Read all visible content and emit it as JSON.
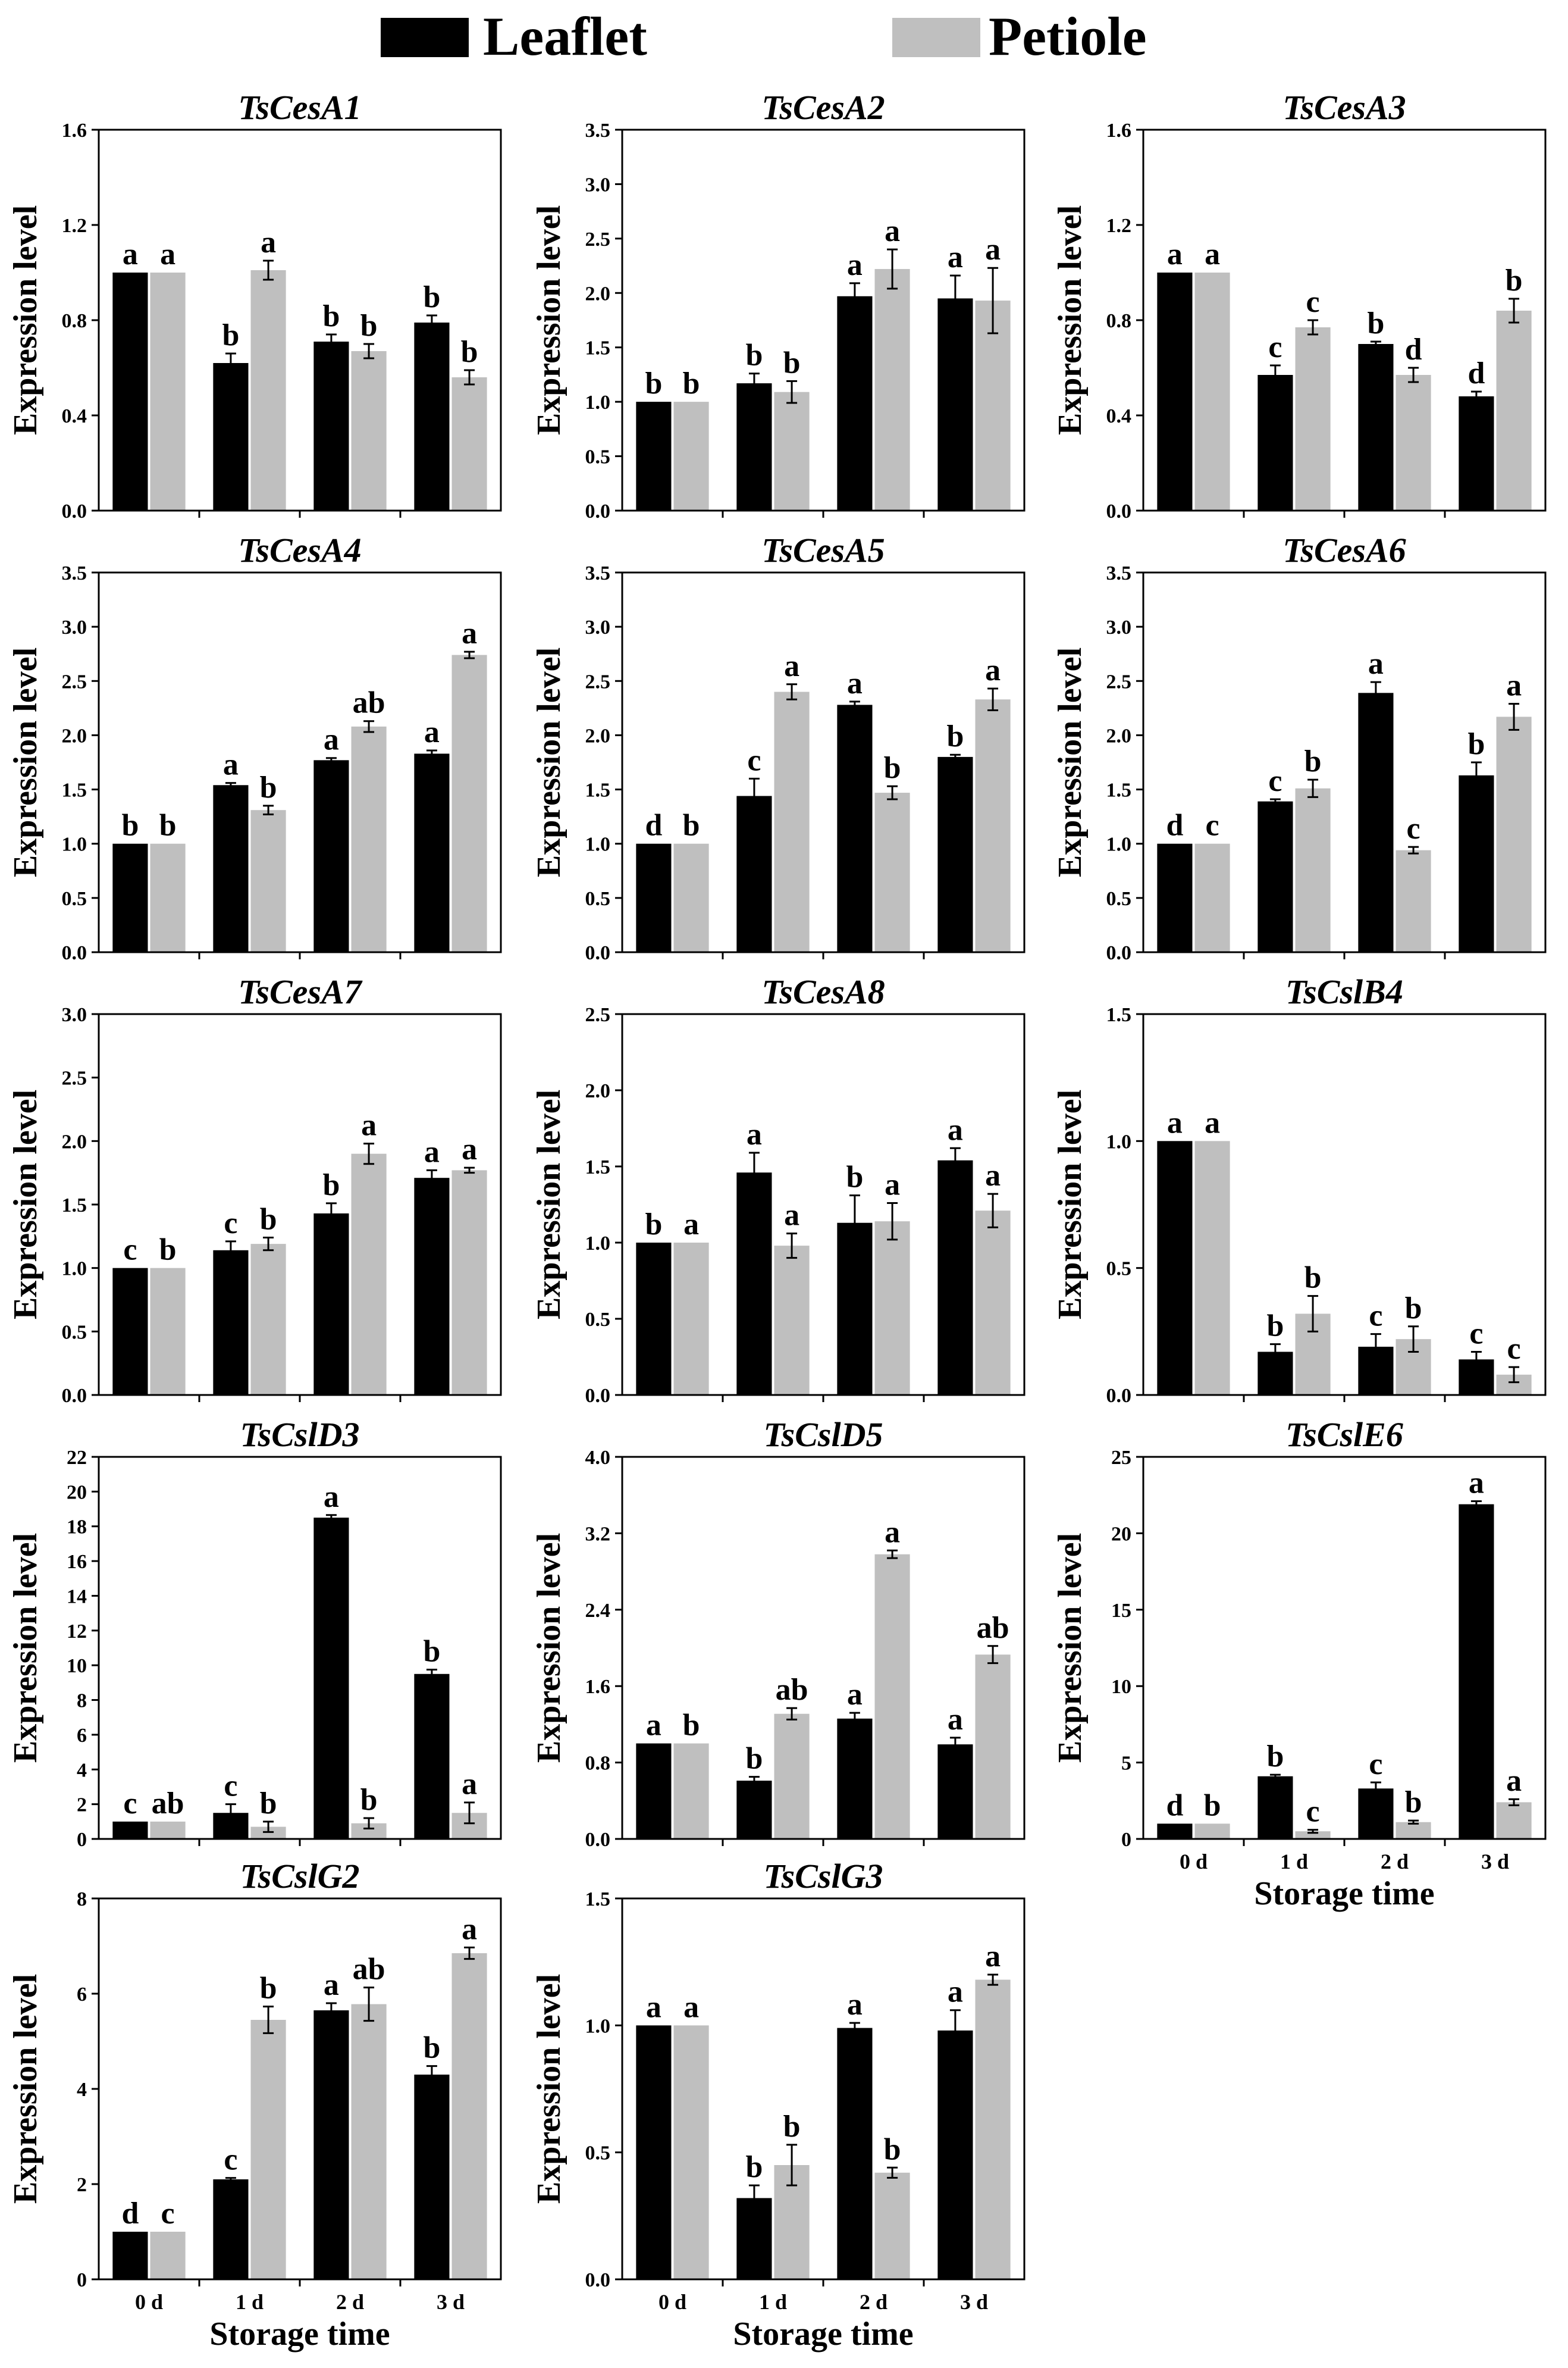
{
  "legend": {
    "items": [
      {
        "name": "Leaflet",
        "color": "#000000"
      },
      {
        "name": "Petiole",
        "color": "#bfbfbf"
      }
    ],
    "placement": "top-center"
  },
  "chart_data": [
    {
      "type": "bar",
      "title": "TsCesA1",
      "ylabel": "Expression level",
      "xlabel": "",
      "categories": [
        "",
        "",
        "",
        ""
      ],
      "ylim": [
        0,
        1.6
      ],
      "yticks": [
        "0.0",
        "0.4",
        "0.8",
        "1.2",
        "1.6"
      ],
      "series": [
        {
          "name": "Leaflet",
          "values": [
            1.0,
            0.62,
            0.71,
            0.79
          ],
          "errors": [
            0,
            0.04,
            0.03,
            0.03
          ],
          "letters": [
            "a",
            "b",
            "b",
            "b"
          ]
        },
        {
          "name": "Petiole",
          "values": [
            1.0,
            1.01,
            0.67,
            0.56
          ],
          "errors": [
            0,
            0.04,
            0.03,
            0.03
          ],
          "letters": [
            "a",
            "a",
            "b",
            "b"
          ]
        }
      ]
    },
    {
      "type": "bar",
      "title": "TsCesA2",
      "ylabel": "Expression level",
      "xlabel": "",
      "categories": [
        "",
        "",
        "",
        ""
      ],
      "ylim": [
        0,
        3.5
      ],
      "yticks": [
        "0.0",
        "0.5",
        "1.0",
        "1.5",
        "2.0",
        "2.5",
        "3.0",
        "3.5"
      ],
      "series": [
        {
          "name": "Leaflet",
          "values": [
            1.0,
            1.17,
            1.97,
            1.95
          ],
          "errors": [
            0,
            0.09,
            0.12,
            0.21
          ],
          "letters": [
            "b",
            "b",
            "a",
            "a"
          ]
        },
        {
          "name": "Petiole",
          "values": [
            1.0,
            1.09,
            2.22,
            1.93
          ],
          "errors": [
            0,
            0.1,
            0.18,
            0.3
          ],
          "letters": [
            "b",
            "b",
            "a",
            "a"
          ]
        }
      ]
    },
    {
      "type": "bar",
      "title": "TsCesA3",
      "ylabel": "Expression level",
      "xlabel": "",
      "categories": [
        "",
        "",
        "",
        ""
      ],
      "ylim": [
        0,
        1.6
      ],
      "yticks": [
        "0.0",
        "0.4",
        "0.8",
        "1.2",
        "1.6"
      ],
      "series": [
        {
          "name": "Leaflet",
          "values": [
            1.0,
            0.57,
            0.7,
            0.48
          ],
          "errors": [
            0,
            0.04,
            0.01,
            0.02
          ],
          "letters": [
            "a",
            "c",
            "b",
            "d"
          ]
        },
        {
          "name": "Petiole",
          "values": [
            1.0,
            0.77,
            0.57,
            0.84
          ],
          "errors": [
            0,
            0.03,
            0.03,
            0.05
          ],
          "letters": [
            "a",
            "c",
            "d",
            "b"
          ]
        }
      ]
    },
    {
      "type": "bar",
      "title": "TsCesA4",
      "ylabel": "Expression level",
      "xlabel": "",
      "categories": [
        "",
        "",
        "",
        ""
      ],
      "ylim": [
        0,
        3.5
      ],
      "yticks": [
        "0.0",
        "0.5",
        "1.0",
        "1.5",
        "2.0",
        "2.5",
        "3.0",
        "3.5"
      ],
      "series": [
        {
          "name": "Leaflet",
          "values": [
            1.0,
            1.54,
            1.77,
            1.83
          ],
          "errors": [
            0,
            0.02,
            0.02,
            0.03
          ],
          "letters": [
            "b",
            "a",
            "a",
            "a"
          ]
        },
        {
          "name": "Petiole",
          "values": [
            1.0,
            1.31,
            2.08,
            2.74
          ],
          "errors": [
            0,
            0.04,
            0.05,
            0.03
          ],
          "letters": [
            "b",
            "b",
            "ab",
            "a"
          ]
        }
      ]
    },
    {
      "type": "bar",
      "title": "TsCesA5",
      "ylabel": "Expression level",
      "xlabel": "",
      "categories": [
        "",
        "",
        "",
        ""
      ],
      "ylim": [
        0,
        3.5
      ],
      "yticks": [
        "0.0",
        "0.5",
        "1.0",
        "1.5",
        "2.0",
        "2.5",
        "3.0",
        "3.5"
      ],
      "series": [
        {
          "name": "Leaflet",
          "values": [
            1.0,
            1.44,
            2.28,
            1.8
          ],
          "errors": [
            0,
            0.16,
            0.03,
            0.02
          ],
          "letters": [
            "d",
            "c",
            "a",
            "b"
          ]
        },
        {
          "name": "Petiole",
          "values": [
            1.0,
            2.4,
            1.47,
            2.33
          ],
          "errors": [
            0,
            0.07,
            0.06,
            0.1
          ],
          "letters": [
            "b",
            "a",
            "b",
            "a"
          ]
        }
      ]
    },
    {
      "type": "bar",
      "title": "TsCesA6",
      "ylabel": "Expression level",
      "xlabel": "",
      "categories": [
        "",
        "",
        "",
        ""
      ],
      "ylim": [
        0,
        3.5
      ],
      "yticks": [
        "0.0",
        "0.5",
        "1.0",
        "1.5",
        "2.0",
        "2.5",
        "3.0",
        "3.5"
      ],
      "series": [
        {
          "name": "Leaflet",
          "values": [
            1.0,
            1.39,
            2.39,
            1.63
          ],
          "errors": [
            0,
            0.02,
            0.1,
            0.12
          ],
          "letters": [
            "d",
            "c",
            "a",
            "b"
          ]
        },
        {
          "name": "Petiole",
          "values": [
            1.0,
            1.51,
            0.94,
            2.17
          ],
          "errors": [
            0,
            0.08,
            0.03,
            0.12
          ],
          "letters": [
            "c",
            "b",
            "c",
            "a"
          ]
        }
      ]
    },
    {
      "type": "bar",
      "title": "TsCesA7",
      "ylabel": "Expression level",
      "xlabel": "",
      "categories": [
        "",
        "",
        "",
        ""
      ],
      "ylim": [
        0,
        3.0
      ],
      "yticks": [
        "0.0",
        "0.5",
        "1.0",
        "1.5",
        "2.0",
        "2.5",
        "3.0"
      ],
      "series": [
        {
          "name": "Leaflet",
          "values": [
            1.0,
            1.14,
            1.43,
            1.71
          ],
          "errors": [
            0,
            0.07,
            0.08,
            0.06
          ],
          "letters": [
            "c",
            "c",
            "b",
            "a"
          ]
        },
        {
          "name": "Petiole",
          "values": [
            1.0,
            1.19,
            1.9,
            1.77
          ],
          "errors": [
            0,
            0.05,
            0.08,
            0.02
          ],
          "letters": [
            "b",
            "b",
            "a",
            "a"
          ]
        }
      ]
    },
    {
      "type": "bar",
      "title": "TsCesA8",
      "ylabel": "Expression level",
      "xlabel": "",
      "categories": [
        "",
        "",
        "",
        ""
      ],
      "ylim": [
        0,
        2.5
      ],
      "yticks": [
        "0.0",
        "0.5",
        "1.0",
        "1.5",
        "2.0",
        "2.5"
      ],
      "series": [
        {
          "name": "Leaflet",
          "values": [
            1.0,
            1.46,
            1.13,
            1.54
          ],
          "errors": [
            0,
            0.13,
            0.18,
            0.08
          ],
          "letters": [
            "b",
            "a",
            "b",
            "a"
          ]
        },
        {
          "name": "Petiole",
          "values": [
            1.0,
            0.98,
            1.14,
            1.21
          ],
          "errors": [
            0,
            0.08,
            0.12,
            0.11
          ],
          "letters": [
            "a",
            "a",
            "a",
            "a"
          ]
        }
      ]
    },
    {
      "type": "bar",
      "title": "TsCslB4",
      "ylabel": "Expression level",
      "xlabel": "",
      "categories": [
        "",
        "",
        "",
        ""
      ],
      "ylim": [
        0,
        1.5
      ],
      "yticks": [
        "0.0",
        "0.5",
        "1.0",
        "1.5"
      ],
      "series": [
        {
          "name": "Leaflet",
          "values": [
            1.0,
            0.17,
            0.19,
            0.14
          ],
          "errors": [
            0,
            0.03,
            0.05,
            0.03
          ],
          "letters": [
            "a",
            "b",
            "c",
            "c"
          ]
        },
        {
          "name": "Petiole",
          "values": [
            1.0,
            0.32,
            0.22,
            0.08
          ],
          "errors": [
            0,
            0.07,
            0.05,
            0.03
          ],
          "letters": [
            "a",
            "b",
            "b",
            "c"
          ]
        }
      ]
    },
    {
      "type": "bar",
      "title": "TsCslD3",
      "ylabel": "Expression level",
      "xlabel": "",
      "categories": [
        "",
        "",
        "",
        ""
      ],
      "ylim": [
        0,
        22
      ],
      "yticks": [
        "0",
        "2",
        "4",
        "6",
        "8",
        "10",
        "12",
        "14",
        "16",
        "18",
        "20",
        "22"
      ],
      "series": [
        {
          "name": "Leaflet",
          "values": [
            1.0,
            1.5,
            18.5,
            9.5
          ],
          "errors": [
            0,
            0.5,
            0.15,
            0.25
          ],
          "letters": [
            "c",
            "c",
            "a",
            "b"
          ]
        },
        {
          "name": "Petiole",
          "values": [
            1.0,
            0.7,
            0.9,
            1.5
          ],
          "errors": [
            0,
            0.3,
            0.3,
            0.6
          ],
          "letters": [
            "ab",
            "b",
            "b",
            "a"
          ]
        }
      ]
    },
    {
      "type": "bar",
      "title": "TsCslD5",
      "ylabel": "Expression level",
      "xlabel": "",
      "categories": [
        "",
        "",
        "",
        ""
      ],
      "ylim": [
        0,
        4.0
      ],
      "yticks": [
        "0.0",
        "0.8",
        "1.6",
        "2.4",
        "3.2",
        "4.0"
      ],
      "series": [
        {
          "name": "Leaflet",
          "values": [
            1.0,
            0.61,
            1.26,
            0.99
          ],
          "errors": [
            0,
            0.04,
            0.06,
            0.07
          ],
          "letters": [
            "a",
            "b",
            "a",
            "a"
          ]
        },
        {
          "name": "Petiole",
          "values": [
            1.0,
            1.31,
            2.98,
            1.93
          ],
          "errors": [
            0,
            0.06,
            0.04,
            0.09
          ],
          "letters": [
            "b",
            "ab",
            "a",
            "ab"
          ]
        }
      ]
    },
    {
      "type": "bar",
      "title": "TsCslE6",
      "ylabel": "Expression level",
      "xlabel": "Storage time",
      "categories": [
        "0 d",
        "1 d",
        "2 d",
        "3 d"
      ],
      "ylim": [
        0,
        25
      ],
      "yticks": [
        "0",
        "5",
        "10",
        "15",
        "20",
        "25"
      ],
      "series": [
        {
          "name": "Leaflet",
          "values": [
            1.0,
            4.1,
            3.3,
            21.9
          ],
          "errors": [
            0,
            0.1,
            0.4,
            0.2
          ],
          "letters": [
            "d",
            "b",
            "c",
            "a"
          ]
        },
        {
          "name": "Petiole",
          "values": [
            1.0,
            0.5,
            1.1,
            2.4
          ],
          "errors": [
            0,
            0.1,
            0.1,
            0.2
          ],
          "letters": [
            "b",
            "c",
            "b",
            "a"
          ]
        }
      ]
    },
    {
      "type": "bar",
      "title": "TsCslG2",
      "ylabel": "Expression level",
      "xlabel": "Storage time",
      "categories": [
        "0 d",
        "1 d",
        "2 d",
        "3 d"
      ],
      "ylim": [
        0,
        8
      ],
      "yticks": [
        "0",
        "2",
        "4",
        "6",
        "8"
      ],
      "series": [
        {
          "name": "Leaflet",
          "values": [
            1.0,
            2.1,
            5.65,
            4.3
          ],
          "errors": [
            0,
            0.03,
            0.15,
            0.18
          ],
          "letters": [
            "d",
            "c",
            "a",
            "b"
          ]
        },
        {
          "name": "Petiole",
          "values": [
            1.0,
            5.45,
            5.78,
            6.85
          ],
          "errors": [
            0,
            0.28,
            0.35,
            0.12
          ],
          "letters": [
            "c",
            "b",
            "ab",
            "a"
          ]
        }
      ]
    },
    {
      "type": "bar",
      "title": "TsCslG3",
      "ylabel": "Expression level",
      "xlabel": "Storage time",
      "categories": [
        "0 d",
        "1 d",
        "2 d",
        "3 d"
      ],
      "ylim": [
        0,
        1.5
      ],
      "yticks": [
        "0.0",
        "0.5",
        "1.0",
        "1.5"
      ],
      "series": [
        {
          "name": "Leaflet",
          "values": [
            1.0,
            0.32,
            0.99,
            0.98
          ],
          "errors": [
            0,
            0.05,
            0.02,
            0.08
          ],
          "letters": [
            "a",
            "b",
            "a",
            "a"
          ]
        },
        {
          "name": "Petiole",
          "values": [
            1.0,
            0.45,
            0.42,
            1.18
          ],
          "errors": [
            0,
            0.08,
            0.02,
            0.02
          ],
          "letters": [
            "a",
            "b",
            "b",
            "a"
          ]
        }
      ]
    }
  ]
}
